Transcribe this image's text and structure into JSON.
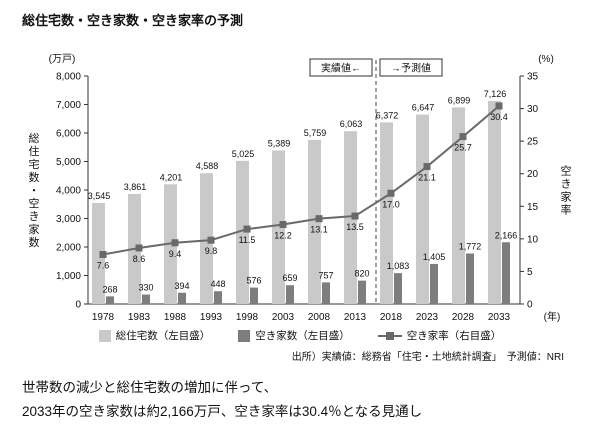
{
  "title": "総住宅数・空き家数・空き家率の予測",
  "chart_data": {
    "type": "bar",
    "categories": [
      "1978",
      "1983",
      "1988",
      "1993",
      "1998",
      "2003",
      "2008",
      "2013",
      "2018",
      "2023",
      "2028",
      "2033"
    ],
    "series": [
      {
        "name": "総住宅数（左目盛）",
        "type": "bar",
        "axis": "left",
        "color": "#c9c9c9",
        "values": [
          3545,
          3861,
          4201,
          4588,
          5025,
          5389,
          5759,
          6063,
          6372,
          6647,
          6899,
          7126
        ],
        "labels": [
          "3,545",
          "3,861",
          "4,201",
          "4,588",
          "5,025",
          "5,389",
          "5,759",
          "6,063",
          "6,372",
          "6,647",
          "6,899",
          "7,126"
        ]
      },
      {
        "name": "空き家数（左目盛）",
        "type": "bar",
        "axis": "left",
        "color": "#7d7d7d",
        "values": [
          268,
          330,
          394,
          448,
          576,
          659,
          757,
          820,
          1083,
          1405,
          1772,
          2166
        ],
        "labels": [
          "268",
          "330",
          "394",
          "448",
          "576",
          "659",
          "757",
          "820",
          "1,083",
          "1,405",
          "1,772",
          "2,166"
        ]
      },
      {
        "name": "空き家率（右目盛）",
        "type": "line",
        "axis": "right",
        "color": "#696969",
        "values": [
          7.6,
          8.6,
          9.4,
          9.8,
          11.5,
          12.2,
          13.1,
          13.5,
          17.0,
          21.1,
          25.7,
          30.4
        ],
        "labels": [
          "7.6",
          "8.6",
          "9.4",
          "9.8",
          "11.5",
          "12.2",
          "13.1",
          "13.5",
          "17.0",
          "21.1",
          "25.7",
          "30.4"
        ]
      }
    ],
    "left_axis": {
      "unit": "(万戸)",
      "title": "総住宅数・空き家数",
      "min": 0,
      "max": 8000,
      "step": 1000
    },
    "right_axis": {
      "unit": "(%)",
      "title": "空き家率",
      "min": 0,
      "max": 35,
      "step": 5
    },
    "x_axis_label": "(年)",
    "divider_after_index": 7,
    "annotations": {
      "actual": "実績値←",
      "forecast": "→予測値"
    },
    "legend_position": "bottom",
    "grid": false
  },
  "source": "出所）実績値：総務省「住宅・土地統計調査」　予測値：NRI",
  "footer": {
    "line1": "世帯数の減少と総住宅数の増加に伴って、",
    "line2": "2033年の空き家数は約2,166万戸、空き家率は30.4％となる見通し"
  }
}
